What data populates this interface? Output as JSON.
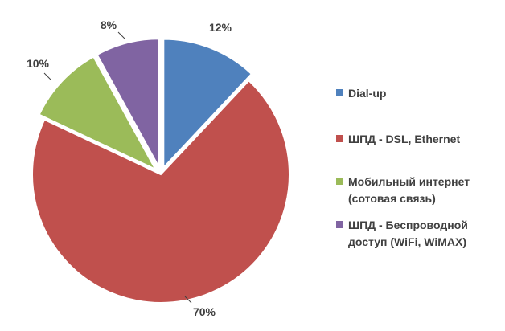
{
  "chart_data": {
    "type": "pie",
    "title": "",
    "categories": [
      "Dial-up",
      "ШПД - DSL, Ethernet",
      "Мобильный интернет (сотовая связь)",
      "ШПД - Беспроводной доступ (WiFi, WiMAX)"
    ],
    "values": [
      12,
      70,
      10,
      8
    ],
    "data_labels": [
      "12%",
      "70%",
      "10%",
      "8%"
    ],
    "colors": [
      "#4f81bd",
      "#c0504d",
      "#9bbb59",
      "#8064a2"
    ],
    "exploded": [
      true,
      false,
      true,
      true
    ],
    "legend_position": "right",
    "start_angle_deg": 0,
    "direction": "clockwise"
  },
  "legend": [
    {
      "color": "#4f81bd",
      "lines": [
        "Dial-up"
      ]
    },
    {
      "color": "#c0504d",
      "lines": [
        "ШПД - DSL, Ethernet"
      ]
    },
    {
      "color": "#9bbb59",
      "lines": [
        "Мобильный интернет",
        "(сотовая связь)"
      ]
    },
    {
      "color": "#8064a2",
      "lines": [
        "ШПД - Беспроводной",
        "доступ (WiFi, WiMAX)"
      ]
    }
  ]
}
